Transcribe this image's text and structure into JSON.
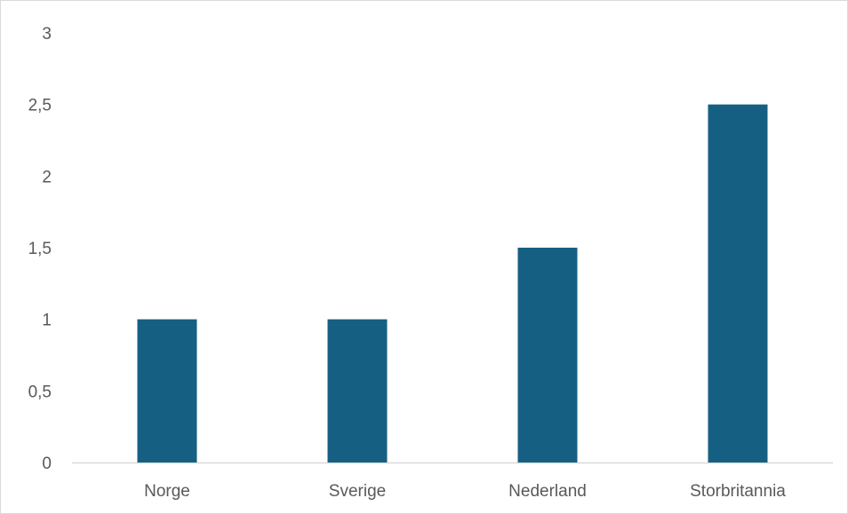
{
  "chart_data": {
    "type": "bar",
    "categories": [
      "Norge",
      "Sverige",
      "Nederland",
      "Storbritannia"
    ],
    "values": [
      1,
      1,
      1.5,
      2.5
    ],
    "y_ticks": [
      "0",
      "0,5",
      "1",
      "1,5",
      "2",
      "2,5",
      "3"
    ],
    "ylim": [
      0,
      3
    ],
    "title": "",
    "xlabel": "",
    "ylabel": "",
    "grid": false,
    "legend": "none",
    "bar_color": "#156082",
    "axis_color": "#d9d9d9",
    "label_color": "#595959"
  }
}
